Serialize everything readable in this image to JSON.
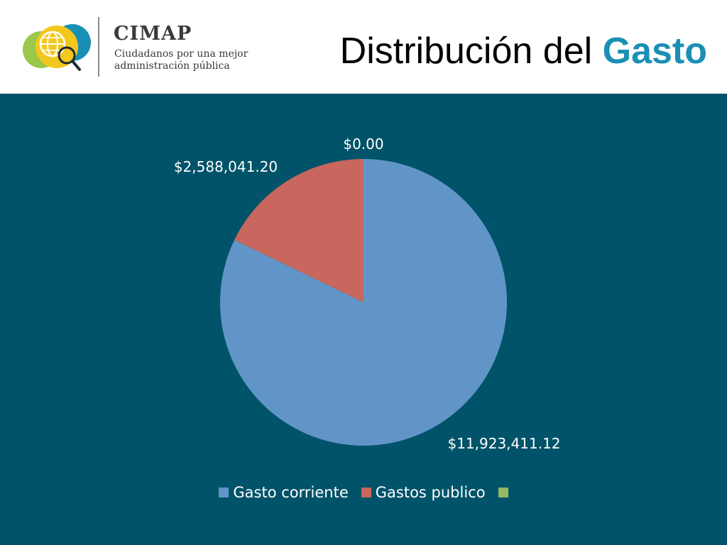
{
  "header": {
    "brand": "CIMAP",
    "tagline": "Ciudadanos por una mejor administración pública",
    "title_part1": "Distribución del ",
    "title_part2": "Gasto"
  },
  "colors": {
    "accent": "#1a8fb5",
    "panel": "#005369",
    "series": [
      "#6195c8",
      "#c9665e",
      "#97b865"
    ]
  },
  "chart_data": {
    "type": "pie",
    "slices": [
      {
        "name": "Gasto corriente",
        "value": 11923411.12,
        "label": "$11,923,411.12",
        "color": "#6195c8"
      },
      {
        "name": "Gastos publico",
        "value": 2588041.2,
        "label": "$2,588,041.20",
        "color": "#c9665e"
      },
      {
        "name": "",
        "value": 0,
        "label": "$0.00",
        "color": "#97b865"
      }
    ],
    "legend_position": "bottom"
  }
}
